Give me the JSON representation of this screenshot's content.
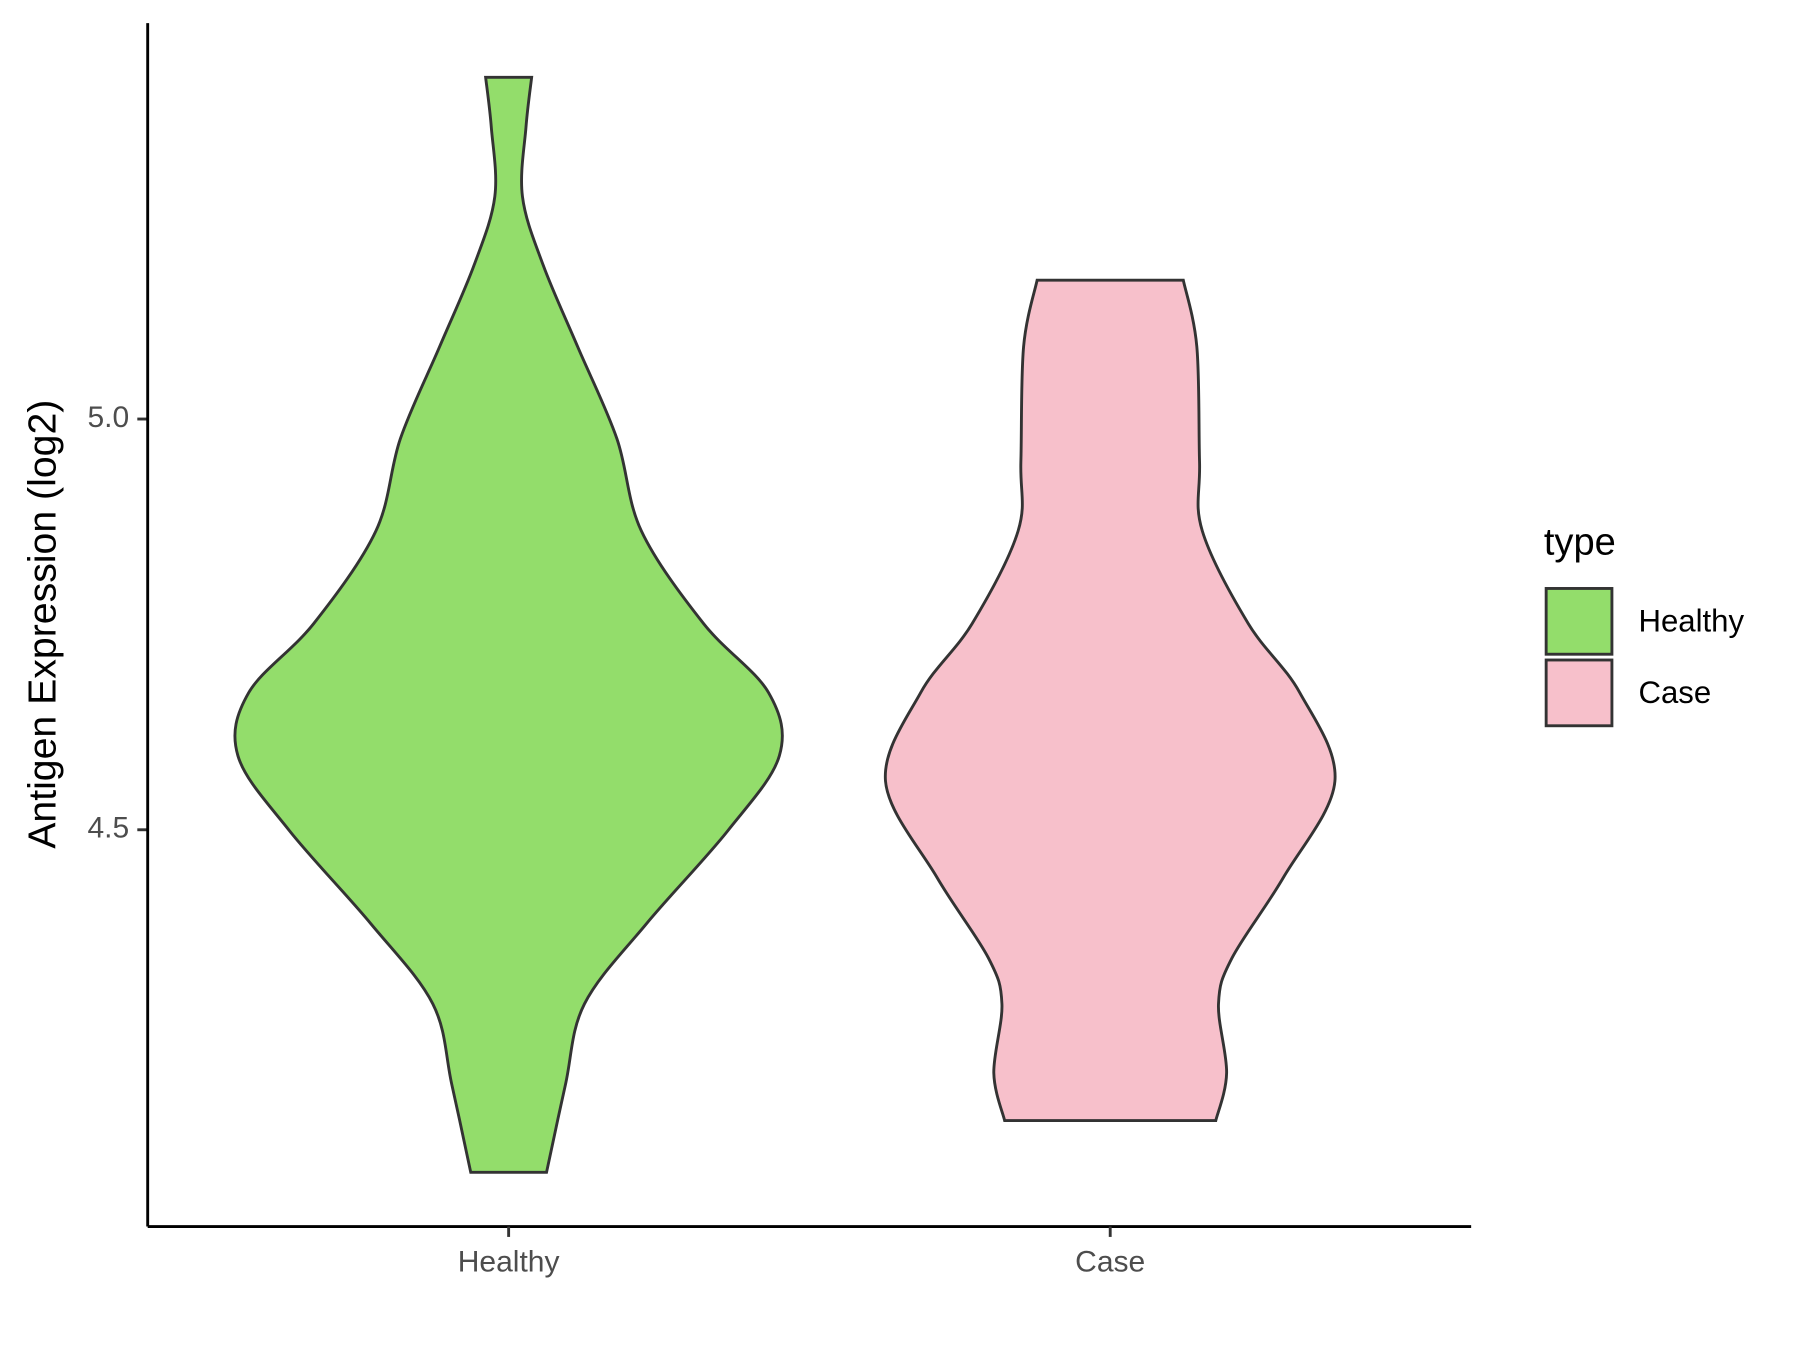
{
  "chart_data": {
    "type": "violin",
    "y_label": "Antigen Expression (log2)",
    "legend_title": "type",
    "categories": [
      "Healthy",
      "Case"
    ],
    "ylim": [
      4.017,
      5.482
    ],
    "yticks": [
      {
        "value": 4.5,
        "label": "4.5"
      },
      {
        "value": 5.0,
        "label": "5.0"
      }
    ],
    "grid": false,
    "legend": "right",
    "series": [
      {
        "name": "Healthy",
        "color": "#93dd6b",
        "values": [
          5.416,
          5.355,
          5.271,
          5.187,
          5.088,
          4.976,
          4.864,
          4.751,
          4.667,
          4.59,
          4.499,
          4.386,
          4.288,
          4.19,
          4.083
        ],
        "density": [
          0.085,
          0.064,
          0.051,
          0.128,
          0.255,
          0.4,
          0.49,
          0.72,
          0.96,
          1,
          0.81,
          0.51,
          0.28,
          0.21,
          0.14
        ]
      },
      {
        "name": "Case",
        "color": "#f7c0cb",
        "values": [
          5.169,
          5.088,
          4.948,
          4.864,
          4.751,
          4.667,
          4.559,
          4.442,
          4.344,
          4.288,
          4.204,
          4.146
        ],
        "density": [
          0.27,
          0.32,
          0.33,
          0.34,
          0.51,
          0.7,
          0.83,
          0.64,
          0.45,
          0.4,
          0.43,
          0.39
        ]
      }
    ]
  }
}
